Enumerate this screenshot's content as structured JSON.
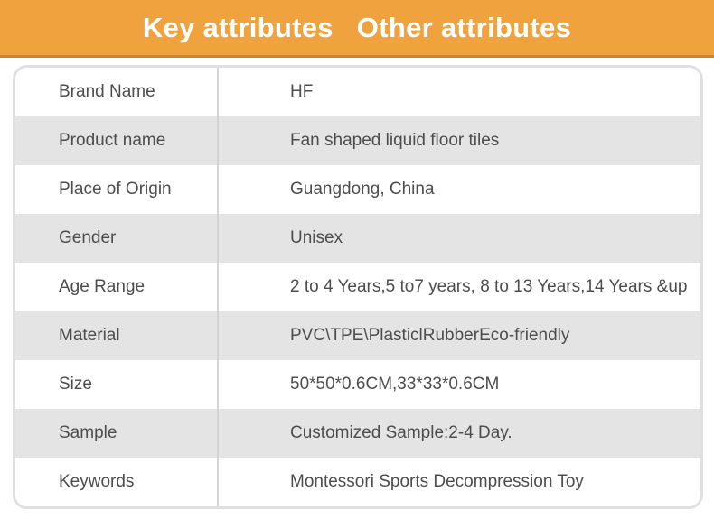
{
  "header": {
    "tabs": [
      {
        "label": "Key attributes"
      },
      {
        "label": "Other attributes"
      }
    ]
  },
  "table": {
    "rows": [
      {
        "label": "Brand Name",
        "value": "HF"
      },
      {
        "label": "Product name",
        "value": "Fan shaped liquid floor tiles"
      },
      {
        "label": "Place of Origin",
        "value": "Guangdong, China"
      },
      {
        "label": "Gender",
        "value": "Unisex"
      },
      {
        "label": "Age Range",
        "value": "2 to 4 Years,5 to7 years, 8 to 13 Years,14 Years &up"
      },
      {
        "label": "Material",
        "value": "PVC\\TPE\\PlasticlRubberEco-friendly"
      },
      {
        "label": "Size",
        "value": "50*50*0.6CM,33*33*0.6CM"
      },
      {
        "label": "Sample",
        "value": "Customized Sample:2-4 Day."
      },
      {
        "label": "Keywords",
        "value": "Montessori Sports Decompression Toy"
      }
    ]
  },
  "colors": {
    "header_bg": "#efa23d",
    "header_border": "#cf8526",
    "row_alt_bg": "#e4e4e4",
    "card_border": "#e0e0e0",
    "divider": "#d4d4d4",
    "text": "#4d4d4d",
    "tab_text": "#ffffff"
  }
}
